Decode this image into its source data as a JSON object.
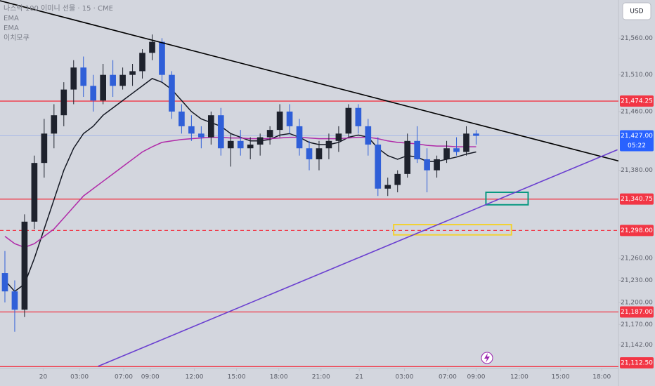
{
  "chart_data": {
    "type": "candlestick",
    "title": "나스닥 100 이미니 선물 · 15 · CME",
    "indicator_label": "이치모쿠",
    "currency": "USD",
    "up_color": "#1e222d",
    "down_color": "#2f5fd8",
    "candles": {
      "open": [
        21240,
        21215,
        21190,
        21310,
        21390,
        21430,
        21455,
        21490,
        21520,
        21495,
        21475,
        21510,
        21495,
        21510,
        21515,
        21540,
        21555,
        21510,
        21460,
        21440,
        21430,
        21425,
        21455,
        21410,
        21420,
        21410,
        21415,
        21425,
        21435,
        21460,
        21440,
        21410,
        21395,
        21410,
        21420,
        21430,
        21465,
        21440,
        21415,
        21355,
        21360,
        21375,
        21420,
        21395,
        21380,
        21395,
        21410,
        21405,
        21430
      ],
      "high": [
        21270,
        21230,
        21320,
        21400,
        21450,
        21470,
        21500,
        21530,
        21535,
        21510,
        21525,
        21530,
        21520,
        21525,
        21545,
        21565,
        21560,
        21515,
        21470,
        21455,
        21440,
        21460,
        21465,
        21430,
        21435,
        21425,
        21430,
        21440,
        21470,
        21470,
        21450,
        21420,
        21420,
        21430,
        21440,
        21470,
        21470,
        21450,
        21425,
        21370,
        21380,
        21430,
        21440,
        21410,
        21400,
        21420,
        21425,
        21440,
        21435
      ],
      "low": [
        21200,
        21160,
        21180,
        21300,
        21370,
        21410,
        21440,
        21470,
        21480,
        21460,
        21470,
        21480,
        21490,
        21495,
        21505,
        21530,
        21500,
        21450,
        21430,
        21420,
        21410,
        21415,
        21400,
        21385,
        21400,
        21395,
        21400,
        21415,
        21425,
        21430,
        21400,
        21380,
        21380,
        21395,
        21405,
        21425,
        21430,
        21400,
        21345,
        21345,
        21350,
        21370,
        21390,
        21350,
        21370,
        21390,
        21400,
        21400,
        21415
      ],
      "close": [
        21215,
        21190,
        21310,
        21390,
        21430,
        21455,
        21490,
        21520,
        21495,
        21475,
        21510,
        21495,
        21510,
        21515,
        21540,
        21555,
        21510,
        21460,
        21440,
        21430,
        21425,
        21455,
        21410,
        21420,
        21410,
        21415,
        21425,
        21435,
        21460,
        21440,
        21410,
        21395,
        21410,
        21420,
        21430,
        21465,
        21440,
        21415,
        21355,
        21360,
        21375,
        21420,
        21395,
        21380,
        21395,
        21410,
        21405,
        21430,
        21427
      ]
    },
    "series": [
      {
        "name": "EMA",
        "color": "#131722",
        "values": [
          21230,
          21215,
          21225,
          21260,
          21300,
          21340,
          21380,
          21410,
          21430,
          21440,
          21455,
          21465,
          21475,
          21485,
          21495,
          21505,
          21500,
          21490,
          21475,
          21460,
          21450,
          21445,
          21440,
          21430,
          21425,
          21420,
          21420,
          21422,
          21428,
          21430,
          21425,
          21418,
          21415,
          21415,
          21418,
          21425,
          21428,
          21425,
          21410,
          21400,
          21395,
          21400,
          21398,
          21392,
          21392,
          21395,
          21398,
          21402,
          21405
        ]
      },
      {
        "name": "EMA",
        "color": "#b02aa8",
        "values": [
          21290,
          21280,
          21275,
          21280,
          21290,
          21300,
          21315,
          21330,
          21345,
          21355,
          21365,
          21375,
          21385,
          21395,
          21405,
          21412,
          21418,
          21420,
          21422,
          21423,
          21424,
          21425,
          21425,
          21424,
          21424,
          21423,
          21423,
          21423,
          21424,
          21425,
          21425,
          21424,
          21423,
          21423,
          21423,
          21424,
          21425,
          21425,
          21423,
          21420,
          21418,
          21417,
          21416,
          21414,
          21413,
          21413,
          21412,
          21412,
          21412
        ]
      }
    ],
    "xlim": [
      0,
      63
    ],
    "xticks": [
      {
        "value": 4.4,
        "label": "20"
      },
      {
        "value": 8.1,
        "label": "03:00"
      },
      {
        "value": 12.6,
        "label": "07:00"
      },
      {
        "value": 15.3,
        "label": "09:00"
      },
      {
        "value": 19.8,
        "label": "12:00"
      },
      {
        "value": 24.1,
        "label": "15:00"
      },
      {
        "value": 28.4,
        "label": "18:00"
      },
      {
        "value": 32.7,
        "label": "21:00"
      },
      {
        "value": 36.6,
        "label": "21"
      },
      {
        "value": 41.2,
        "label": "03:00"
      },
      {
        "value": 45.6,
        "label": "07:00"
      },
      {
        "value": 48.5,
        "label": "09:00"
      },
      {
        "value": 52.9,
        "label": "12:00"
      },
      {
        "value": 57.1,
        "label": "15:00"
      },
      {
        "value": 61.3,
        "label": "18:00"
      }
    ],
    "ylim": [
      21110,
      21612
    ],
    "yticks": [
      {
        "value": 21560,
        "label": "21,560.00"
      },
      {
        "value": 21510,
        "label": "21,510.00"
      },
      {
        "value": 21460,
        "label": "21,460.00"
      },
      {
        "value": 21380,
        "label": "21,380.00"
      },
      {
        "value": 21260,
        "label": "21,260.00"
      },
      {
        "value": 21230,
        "label": "21,230.00"
      },
      {
        "value": 21200,
        "label": "21,200.00"
      },
      {
        "value": 21170,
        "label": "21,170.00"
      },
      {
        "value": 21142,
        "label": "21,142.00"
      }
    ],
    "levels": [
      {
        "value": 21474.25,
        "label": "21,474.25",
        "color": "#f23645",
        "dashed": false
      },
      {
        "value": 21427,
        "label": "21,427.00",
        "color": "#2962ff",
        "dashed": false,
        "countdown": "05:22"
      },
      {
        "value": 21340.75,
        "label": "21,340.75",
        "color": "#f23645",
        "dashed": false
      },
      {
        "value": 21298,
        "label": "21,298.00",
        "color": "#f23645",
        "dashed": true
      },
      {
        "value": 21187,
        "label": "21,187.00",
        "color": "#f23645",
        "dashed": false
      },
      {
        "value": 21112.5,
        "label": "21,112.50",
        "color": "#f23645",
        "dashed": false
      }
    ],
    "trendlines": [
      {
        "color": "#000000",
        "x": [
          0,
          63.2
        ],
        "y": [
          21611,
          21392
        ]
      },
      {
        "color": "#6a3fd0",
        "x": [
          10,
          62.9
        ],
        "y": [
          21113,
          21408
        ]
      }
    ],
    "boxes": [
      {
        "color": "#089981",
        "x": [
          49.5,
          53.8
        ],
        "y": [
          21333,
          21350
        ]
      },
      {
        "color": "#f2d230",
        "x": [
          40.1,
          52.1
        ],
        "y": [
          21292,
          21306
        ]
      }
    ]
  }
}
